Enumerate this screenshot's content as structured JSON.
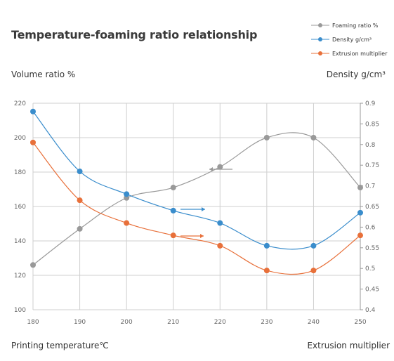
{
  "chart_data": {
    "type": "line",
    "title": "Temperature-foaming ratio relationship",
    "xlabel": "Printing temperature℃",
    "xlabel2": "Extrusion multiplier",
    "ylabel_left": "Volume ratio %",
    "ylabel_right": "Density g/cm³",
    "x": [
      180,
      190,
      200,
      210,
      220,
      230,
      240,
      250
    ],
    "xlim": [
      180,
      250
    ],
    "ylim_left": [
      100,
      220
    ],
    "ylim_right": [
      0.4,
      0.9
    ],
    "yticks_left": [
      100,
      120,
      140,
      160,
      180,
      200,
      220
    ],
    "yticks_right": [
      0.4,
      0.45,
      0.5,
      0.55,
      0.6,
      0.65,
      0.7,
      0.75,
      0.8,
      0.85,
      0.9
    ],
    "grid": true,
    "legend_position": "top-right",
    "series": [
      {
        "name": "Foaming ratio %",
        "axis": "left",
        "color": "#999999",
        "values": [
          126,
          147,
          165,
          171,
          183,
          200,
          200,
          171
        ]
      },
      {
        "name": "Density g/cm³",
        "axis": "right",
        "color": "#3a8dcc",
        "values": [
          0.88,
          0.735,
          0.68,
          0.64,
          0.61,
          0.555,
          0.555,
          0.635
        ]
      },
      {
        "name": "Extrusion multiplier",
        "axis": "right",
        "color": "#e8703a",
        "values": [
          0.805,
          0.665,
          0.61,
          0.58,
          0.555,
          0.495,
          0.495,
          0.58
        ]
      }
    ]
  }
}
